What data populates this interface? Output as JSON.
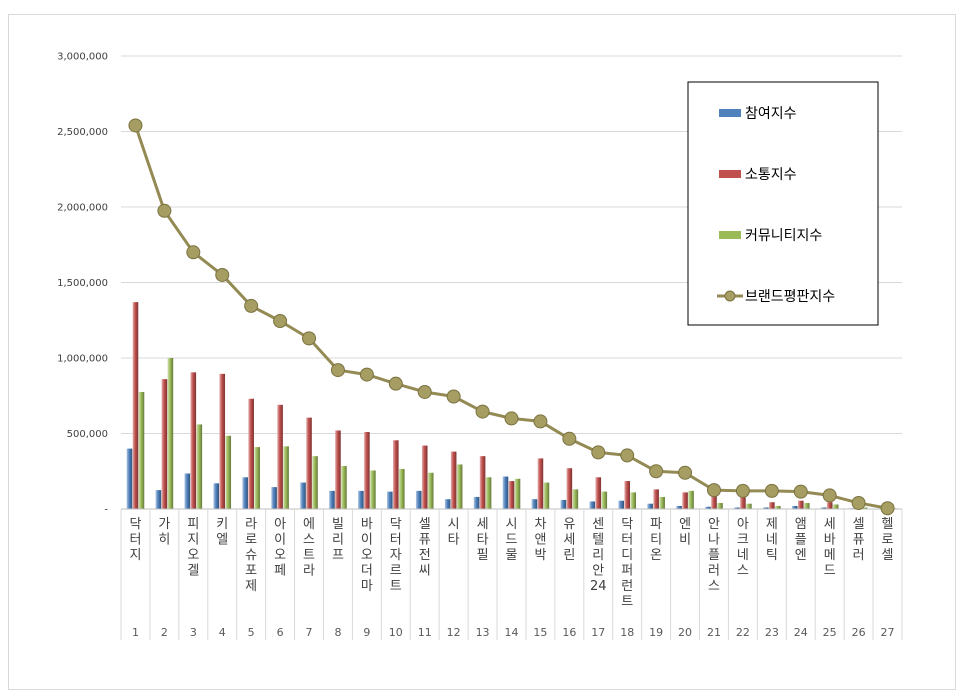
{
  "chart_data": {
    "type": "bar",
    "categories": [
      "닥터지",
      "가히",
      "피지오겔",
      "키엘",
      "라로슈포제",
      "아이오페",
      "에스트라",
      "빌리프",
      "바이오더마",
      "닥터자르트",
      "셀퓨전씨",
      "시타",
      "세타필",
      "시드물",
      "차앤박",
      "유세린",
      "센텔리안24",
      "닥터디퍼런트",
      "파티온",
      "엔비",
      "안나플러스",
      "아크네스",
      "제네틱",
      "앰플엔",
      "세바메드",
      "셀퓨러",
      "헬로셀"
    ],
    "ranks": [
      "1",
      "2",
      "3",
      "4",
      "5",
      "6",
      "7",
      "8",
      "9",
      "10",
      "11",
      "12",
      "13",
      "14",
      "15",
      "16",
      "17",
      "18",
      "19",
      "20",
      "21",
      "22",
      "23",
      "24",
      "25",
      "26",
      "27"
    ],
    "series": [
      {
        "name": "참여지수",
        "type": "bar",
        "color": "#4f81bd",
        "values": [
          400000,
          125000,
          235000,
          170000,
          210000,
          145000,
          175000,
          120000,
          120000,
          115000,
          120000,
          65000,
          80000,
          215000,
          65000,
          60000,
          50000,
          55000,
          35000,
          20000,
          15000,
          10000,
          10000,
          20000,
          10000,
          5000,
          3000
        ]
      },
      {
        "name": "소통지수",
        "type": "bar",
        "color": "#c0504d",
        "values": [
          1370000,
          860000,
          905000,
          895000,
          730000,
          690000,
          605000,
          520000,
          510000,
          455000,
          420000,
          380000,
          350000,
          185000,
          335000,
          270000,
          210000,
          185000,
          130000,
          110000,
          110000,
          95000,
          45000,
          55000,
          45000,
          20000,
          5000
        ]
      },
      {
        "name": "커뮤니티지수",
        "type": "bar",
        "color": "#9bbb59",
        "values": [
          775000,
          1000000,
          560000,
          485000,
          410000,
          415000,
          350000,
          285000,
          255000,
          265000,
          240000,
          295000,
          210000,
          200000,
          175000,
          130000,
          115000,
          110000,
          80000,
          120000,
          40000,
          35000,
          20000,
          40000,
          30000,
          10000,
          5000
        ]
      },
      {
        "name": "브랜드평판지수",
        "type": "line",
        "color": "#948a54",
        "values": [
          2540000,
          1975000,
          1700000,
          1550000,
          1345000,
          1245000,
          1130000,
          920000,
          890000,
          830000,
          775000,
          745000,
          645000,
          600000,
          580000,
          465000,
          375000,
          355000,
          250000,
          240000,
          125000,
          120000,
          120000,
          115000,
          90000,
          40000,
          5000
        ]
      }
    ],
    "y_ticks": [
      "-",
      "500,000",
      "1,000,000",
      "1,500,000",
      "2,000,000",
      "2,500,000",
      "3,000,000"
    ],
    "ylim": [
      0,
      3000000
    ],
    "grid": true,
    "legend": "top-right",
    "title": "",
    "xlabel": "",
    "ylabel": ""
  }
}
